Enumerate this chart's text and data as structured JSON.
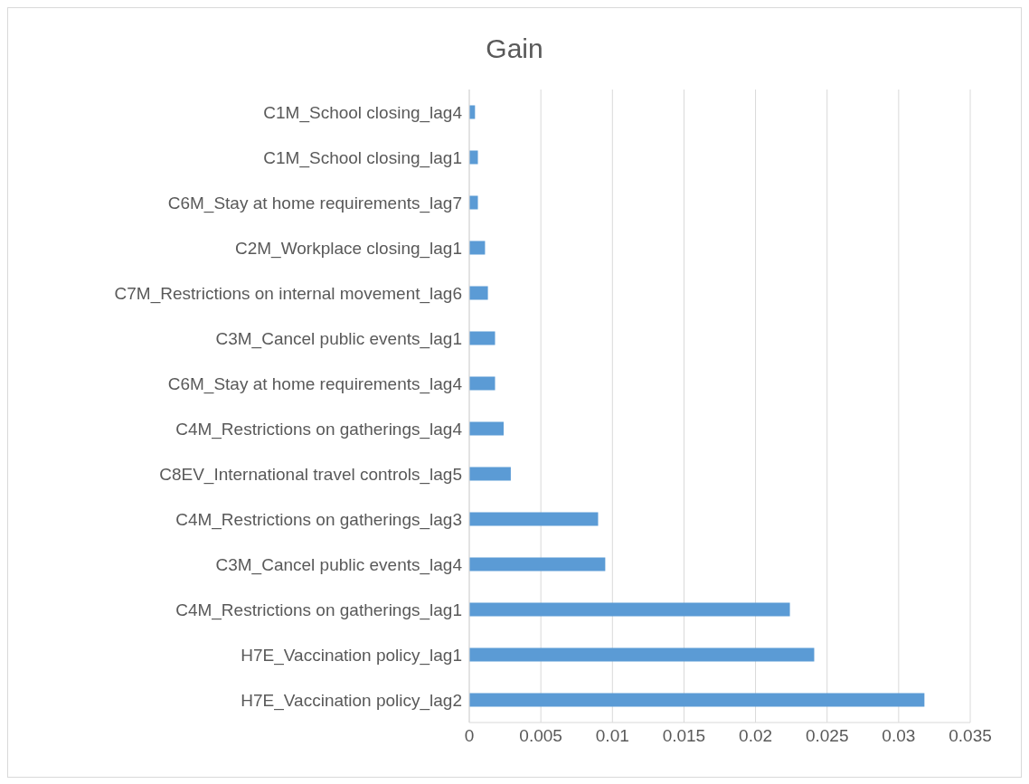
{
  "chart_data": {
    "type": "bar",
    "orientation": "horizontal",
    "title": "Gain",
    "categories": [
      "C1M_School closing_lag4",
      "C1M_School closing_lag1",
      "C6M_Stay at home requirements_lag7",
      "C2M_Workplace closing_lag1",
      "C7M_Restrictions on internal movement_lag6",
      "C3M_Cancel public events_lag1",
      "C6M_Stay at home requirements_lag4",
      "C4M_Restrictions on gatherings_lag4",
      "C8EV_International travel controls_lag5",
      "C4M_Restrictions on gatherings_lag3",
      "C3M_Cancel public events_lag4",
      "C4M_Restrictions on gatherings_lag1",
      "H7E_Vaccination policy_lag1",
      "H7E_Vaccination policy_lag2"
    ],
    "values": [
      0.0004,
      0.0006,
      0.0006,
      0.0011,
      0.0013,
      0.0018,
      0.0018,
      0.0024,
      0.0029,
      0.009,
      0.0095,
      0.0224,
      0.0241,
      0.0318
    ],
    "color": "#5b9bd5",
    "xlim": [
      0,
      0.035
    ],
    "xticks": [
      0,
      0.005,
      0.01,
      0.015,
      0.02,
      0.025,
      0.03,
      0.035
    ],
    "grid": "x"
  }
}
